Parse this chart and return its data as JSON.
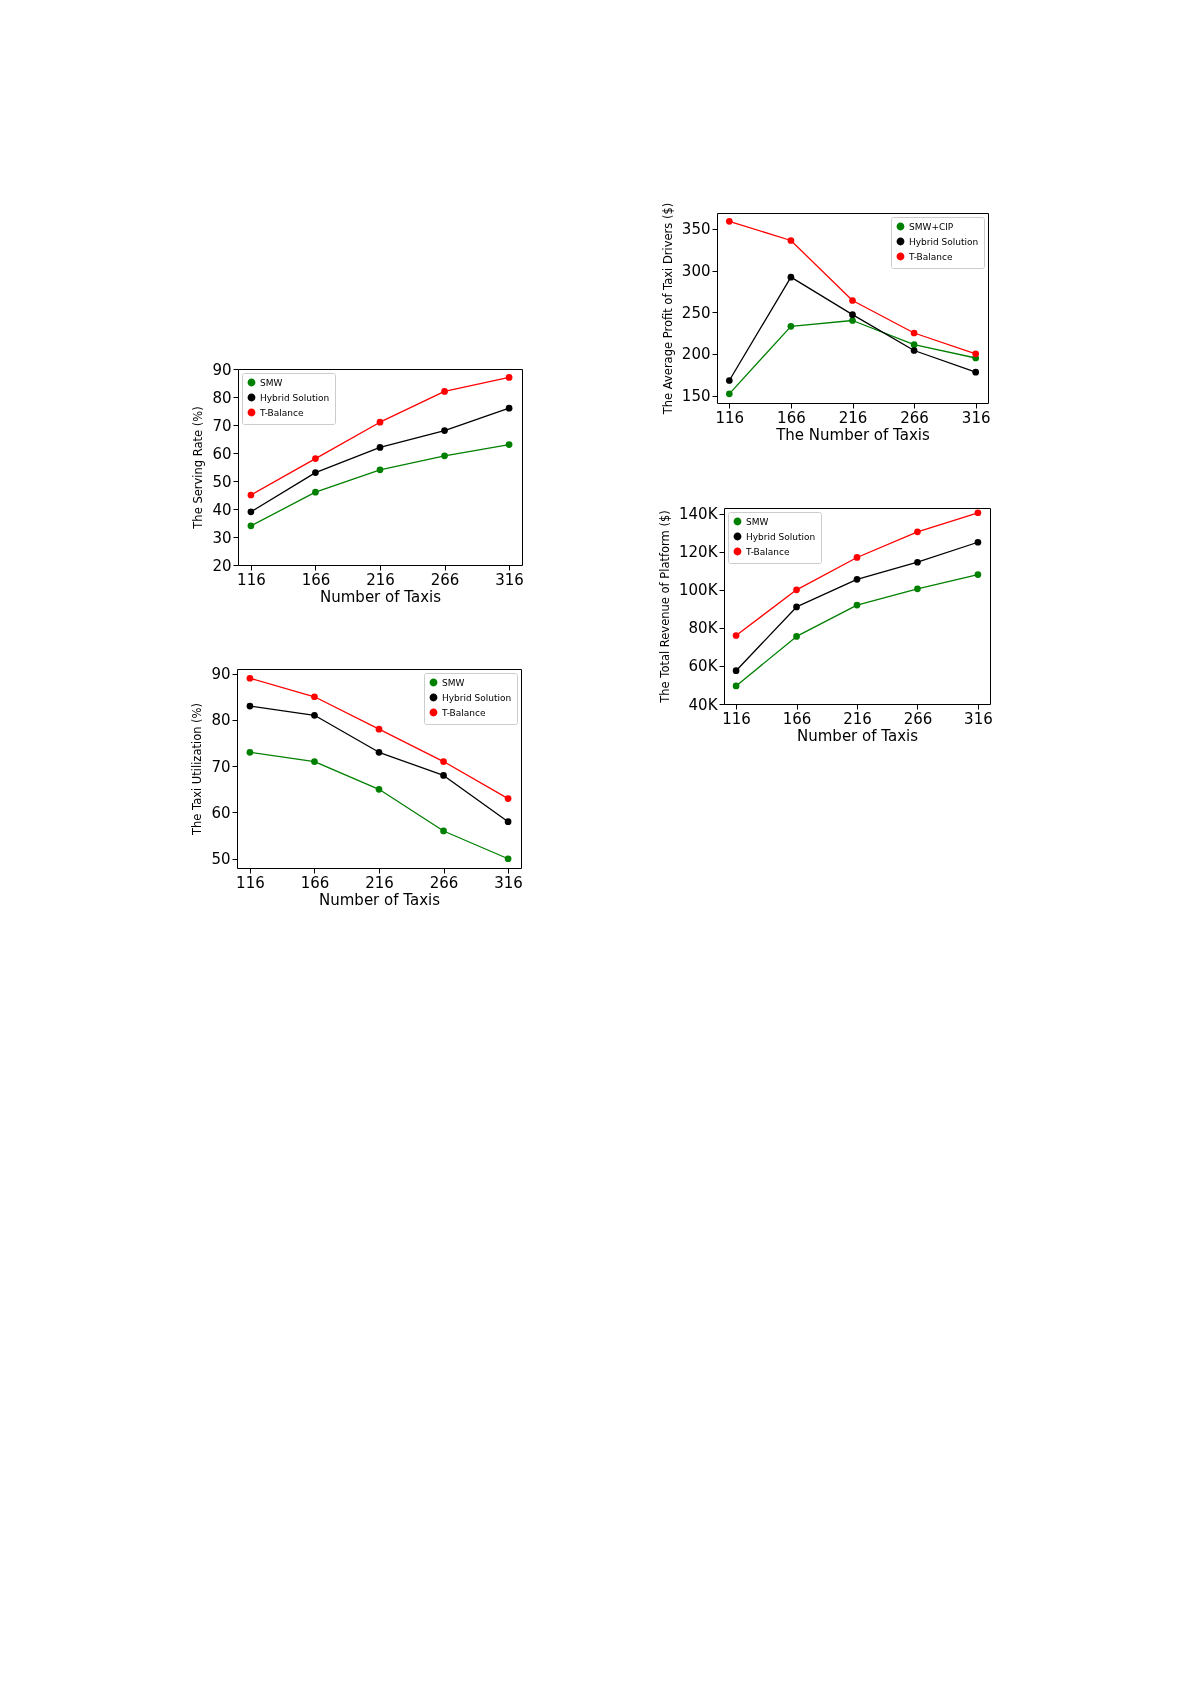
{
  "chart_data": [
    {
      "type": "line",
      "xlabel": "Number of Taxis",
      "ylabel": "The Serving Rate (%)",
      "x": [
        116,
        166,
        216,
        266,
        316
      ],
      "xlim": [
        106,
        326
      ],
      "xticks": [
        116,
        166,
        216,
        266,
        316
      ],
      "ylim": [
        20,
        90
      ],
      "yticks": [
        20,
        30,
        40,
        50,
        60,
        70,
        80,
        90
      ],
      "legend": "top left",
      "marker": "circle",
      "grid": false,
      "series": [
        {
          "name": "SMW",
          "color": "#008000",
          "values": [
            34,
            46,
            54,
            59,
            63
          ]
        },
        {
          "name": "Hybrid Solution",
          "color": "#000000",
          "values": [
            39,
            53,
            62,
            68,
            76
          ]
        },
        {
          "name": "T-Balance",
          "color": "#ff0000",
          "values": [
            45,
            58,
            71,
            82,
            87
          ]
        }
      ]
    },
    {
      "type": "line",
      "xlabel": "Number of Taxis",
      "ylabel": "The Taxi Utilization (%)",
      "x": [
        116,
        166,
        216,
        266,
        316
      ],
      "xlim": [
        106,
        326
      ],
      "xticks": [
        116,
        166,
        216,
        266,
        316
      ],
      "ylim": [
        48,
        91
      ],
      "yticks": [
        50,
        60,
        70,
        80,
        90
      ],
      "legend": "top right",
      "marker": "circle",
      "grid": false,
      "series": [
        {
          "name": "SMW",
          "color": "#008000",
          "values": [
            73,
            71,
            65,
            56,
            50
          ]
        },
        {
          "name": "Hybrid Solution",
          "color": "#000000",
          "values": [
            83,
            81,
            73,
            68,
            58
          ]
        },
        {
          "name": "T-Balance",
          "color": "#ff0000",
          "values": [
            89,
            85,
            78,
            71,
            63
          ]
        }
      ]
    },
    {
      "type": "line",
      "xlabel": "The Number of Taxis",
      "ylabel": "The Average Profit of Taxi Drivers ($)",
      "x": [
        116,
        166,
        216,
        266,
        316
      ],
      "xlim": [
        106,
        326
      ],
      "xticks": [
        116,
        166,
        216,
        266,
        316
      ],
      "ylim": [
        141,
        369
      ],
      "yticks": [
        150,
        200,
        250,
        300,
        350
      ],
      "legend": "top right",
      "marker": "circle",
      "grid": false,
      "series": [
        {
          "name": "SMW+CIP",
          "color": "#008000",
          "values": [
            152,
            233,
            240,
            211,
            195
          ]
        },
        {
          "name": "Hybrid Solution",
          "color": "#000000",
          "values": [
            168,
            292,
            247,
            204,
            178
          ]
        },
        {
          "name": "T-Balance",
          "color": "#ff0000",
          "values": [
            359,
            336,
            264,
            225,
            200
          ]
        }
      ]
    },
    {
      "type": "line",
      "xlabel": "Number of Taxis",
      "ylabel": "The Total Revenue of Platform ($)",
      "x": [
        116,
        166,
        216,
        266,
        316
      ],
      "xlim": [
        106,
        326
      ],
      "xticks": [
        116,
        166,
        216,
        266,
        316
      ],
      "ylim": [
        40000,
        143000
      ],
      "yticks": [
        {
          "value": 40000,
          "label": "40K"
        },
        {
          "value": 60000,
          "label": "60K"
        },
        {
          "value": 80000,
          "label": "80K"
        },
        {
          "value": 100000,
          "label": "100K"
        },
        {
          "value": 120000,
          "label": "120K"
        },
        {
          "value": 140000,
          "label": "140K"
        }
      ],
      "legend": "top left",
      "marker": "circle",
      "grid": false,
      "series": [
        {
          "name": "SMW",
          "color": "#008000",
          "values": [
            49500,
            75500,
            92000,
            100500,
            108000
          ]
        },
        {
          "name": "Hybrid Solution",
          "color": "#000000",
          "values": [
            57500,
            91000,
            105500,
            114500,
            125000
          ]
        },
        {
          "name": "T-Balance",
          "color": "#ff0000",
          "values": [
            76000,
            100000,
            117000,
            130500,
            140500
          ]
        }
      ]
    }
  ]
}
